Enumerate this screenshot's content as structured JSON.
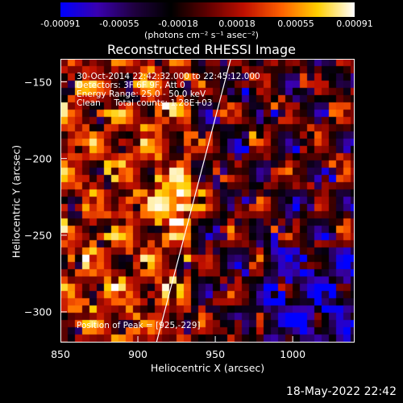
{
  "chart_data": {
    "type": "heatmap",
    "title": "Reconstructed RHESSI Image",
    "xlabel": "Heliocentric X (arcsec)",
    "ylabel": "Heliocentric Y (arcsec)",
    "xlim": [
      850,
      1040
    ],
    "ylim": [
      -320,
      -135
    ],
    "x_ticks": [
      850,
      900,
      950,
      1000
    ],
    "y_ticks": [
      -150,
      -200,
      -250,
      -300
    ],
    "colorbar": {
      "ticks": [
        "-0.00091",
        "-0.00055",
        "-0.00018",
        "0.00018",
        "0.00055",
        "0.00091"
      ],
      "range": [
        -0.00091,
        0.00091
      ],
      "unit_text": "(photons cm⁻² s⁻¹ asec⁻²)"
    },
    "annotations": [
      "30-Oct-2014 22:42:32.000 to 22:45:12.000",
      "Detectors: 3F 6F 9F, Att 0",
      "Energy Range: 25.0 - 50.0 keV",
      "Clean     Total counts: 1.28E+03"
    ],
    "peak_label": "Position of Peak = [925,-229]",
    "peak": [
      925,
      -229
    ],
    "limb_line": [
      [
        912,
        -320
      ],
      [
        960,
        -135
      ]
    ]
  },
  "footer": {
    "datestamp": "18-May-2022 22:42"
  },
  "colors": {
    "background": "#000000",
    "text": "#ffffff",
    "colormap": [
      "#0000ff",
      "#3a00b0",
      "#200040",
      "#000000",
      "#600000",
      "#c01000",
      "#ff6000",
      "#ffd000",
      "#ffffff"
    ]
  }
}
